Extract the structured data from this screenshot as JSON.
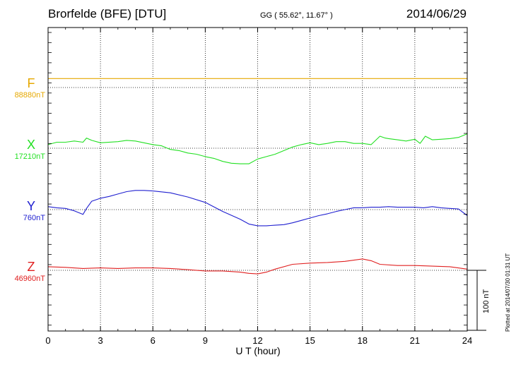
{
  "header": {
    "title": "Brorfelde (BFE)  [DTU]",
    "coords": "GG ( 55.62°,  11.67° )",
    "date": "2014/06/29"
  },
  "footer": {
    "xlabel": "U T (hour)",
    "plotted": "Plotted at 2014/07/30 01:31  UT",
    "scale_label": "100 nT"
  },
  "chart_data": {
    "type": "line",
    "xlabel": "U T (hour)",
    "xlim": [
      0,
      24
    ],
    "x_ticks": [
      "0",
      "3",
      "6",
      "9",
      "12",
      "15",
      "18",
      "21",
      "24"
    ],
    "scale_nT": 100,
    "grid": true,
    "series": [
      {
        "name": "F",
        "baseline_label": "88880nT",
        "color": "#e6a800",
        "x": [
          0,
          3,
          6,
          9,
          12,
          15,
          18,
          21,
          24
        ],
        "y": [
          15,
          15,
          15,
          15,
          15,
          15,
          15,
          15,
          15
        ]
      },
      {
        "name": "X",
        "baseline_label": "17210nT",
        "color": "#22e022",
        "x": [
          0,
          0.5,
          1,
          1.5,
          2,
          2.2,
          2.5,
          3,
          4,
          4.5,
          5,
          6,
          6.5,
          7,
          7.5,
          8,
          8.5,
          9,
          9.5,
          10,
          10.5,
          11,
          11.5,
          12,
          12.5,
          13,
          13.5,
          14,
          14.5,
          15,
          15.5,
          16,
          16.5,
          17,
          17.5,
          18,
          18.5,
          19,
          19.3,
          19.5,
          20,
          20.5,
          21,
          21.3,
          21.6,
          22,
          22.5,
          23,
          23.5,
          24
        ],
        "y": [
          6,
          10,
          10,
          12,
          10,
          17,
          13,
          9,
          11,
          13,
          12,
          6,
          4,
          -2,
          -4,
          -8,
          -10,
          -14,
          -17,
          -22,
          -25,
          -26,
          -26,
          -18,
          -14,
          -10,
          -4,
          2,
          6,
          9,
          6,
          8,
          11,
          11,
          8,
          8,
          6,
          20,
          17,
          16,
          14,
          12,
          15,
          8,
          20,
          14,
          15,
          16,
          18,
          24
        ]
      },
      {
        "name": "Y",
        "baseline_label": "760nT",
        "color": "#2020d0",
        "x": [
          0,
          0.5,
          1,
          1.5,
          2,
          2.2,
          2.5,
          3,
          3.5,
          4,
          4.5,
          5,
          5.5,
          6,
          7,
          8,
          9,
          10,
          11,
          11.5,
          12,
          12.5,
          13,
          13.5,
          14,
          14.5,
          15,
          15.5,
          16,
          16.5,
          17,
          17.5,
          18,
          18.5,
          19,
          19.5,
          20,
          21,
          21.5,
          22,
          22.5,
          23,
          23.5,
          24
        ],
        "y": [
          5,
          3,
          2,
          -2,
          -8,
          2,
          14,
          19,
          22,
          26,
          30,
          32,
          32,
          31,
          28,
          21,
          12,
          -3,
          -16,
          -24,
          -27,
          -27,
          -26,
          -25,
          -22,
          -18,
          -14,
          -10,
          -7,
          -3,
          0,
          3,
          3,
          4,
          4,
          5,
          4,
          4,
          3,
          5,
          3,
          2,
          1,
          -10
        ]
      },
      {
        "name": "Z",
        "baseline_label": "46960nT",
        "color": "#e02020",
        "x": [
          0,
          1,
          2,
          3,
          4,
          5,
          6,
          7,
          8,
          9,
          10,
          11,
          11.5,
          12,
          12.5,
          13,
          14,
          15,
          16,
          17,
          18,
          18.5,
          19,
          20,
          21,
          22,
          23,
          24
        ],
        "y": [
          6,
          5,
          3,
          4,
          3,
          4,
          4,
          3,
          1,
          -1,
          -1,
          -3,
          -5,
          -6,
          -3,
          2,
          10,
          12,
          13,
          15,
          19,
          16,
          10,
          8,
          8,
          7,
          6,
          2
        ]
      }
    ]
  }
}
